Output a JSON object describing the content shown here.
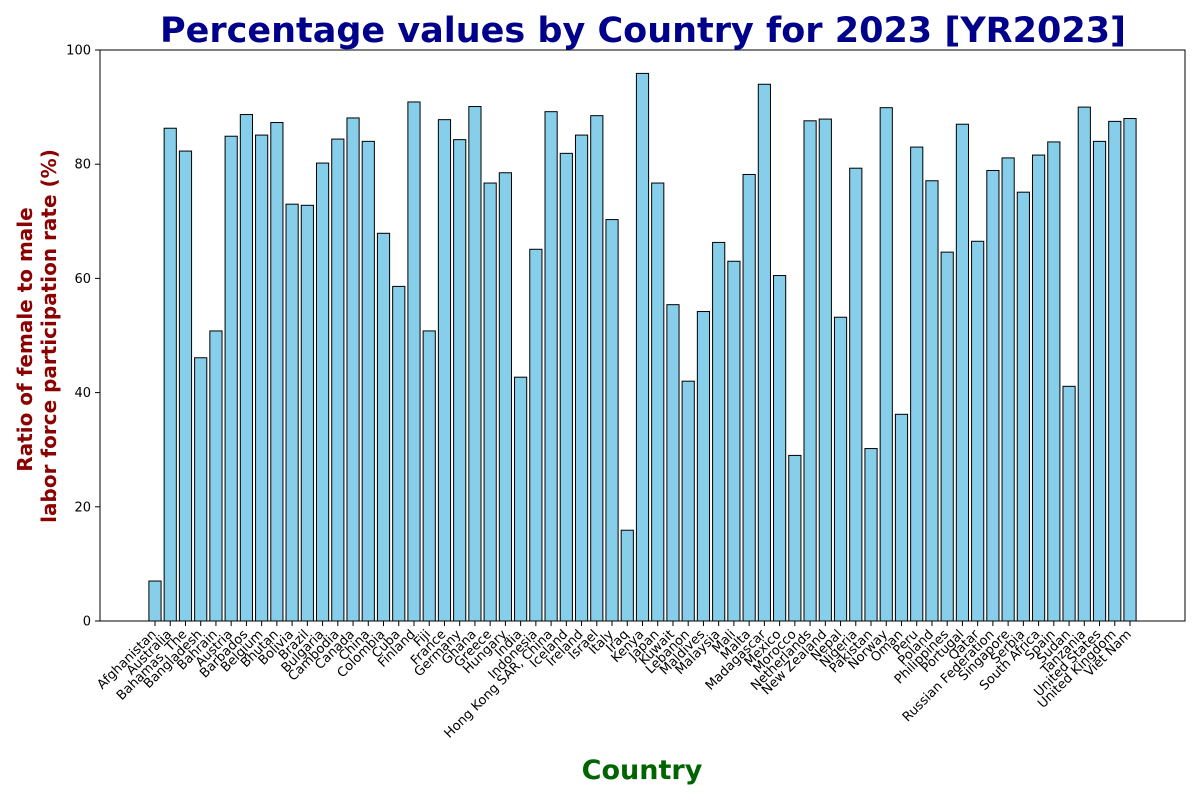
{
  "chart_data": {
    "type": "bar",
    "title": "Percentage values by Country for 2023 [YR2023]",
    "xlabel": "Country",
    "ylabel_lines": [
      "Ratio of female to male",
      "labor force participation rate (%)"
    ],
    "ylim": [
      0,
      100
    ],
    "yticks": [
      0,
      20,
      40,
      60,
      80,
      100
    ],
    "grid": false,
    "categories": [
      "Afghanistan",
      "Australia",
      "Bahamas, The",
      "Bangladesh",
      "Bahrain",
      "Austria",
      "Barbados",
      "Belgium",
      "Bhutan",
      "Bolivia",
      "Brazil",
      "Bulgaria",
      "Cambodia",
      "Canada",
      "China",
      "Colombia",
      "Cuba",
      "Finland",
      "Fiji",
      "France",
      "Germany",
      "Ghana",
      "Greece",
      "Hungary",
      "India",
      "Indonesia",
      "Hong Kong SAR, China",
      "Iceland",
      "Ireland",
      "Israel",
      "Italy",
      "Iraq",
      "Kenya",
      "Japan",
      "Kuwait",
      "Lebanon",
      "Maldives",
      "Malaysia",
      "Mali",
      "Malta",
      "Madagascar",
      "Mexico",
      "Morocco",
      "Netherlands",
      "New Zealand",
      "Nepal",
      "Nigeria",
      "Pakistan",
      "Norway",
      "Oman",
      "Peru",
      "Poland",
      "Philippines",
      "Portugal",
      "Qatar",
      "Russian Federation",
      "Singapore",
      "Serbia",
      "South Africa",
      "Spain",
      "Sudan",
      "Tanzania",
      "United States",
      "United Kingdom",
      "Viet Nam"
    ],
    "values": [
      7.0,
      86.3,
      82.3,
      46.1,
      50.8,
      84.9,
      88.7,
      85.1,
      87.3,
      73.0,
      72.8,
      80.2,
      84.4,
      88.1,
      84.0,
      67.9,
      58.6,
      90.9,
      50.8,
      87.8,
      84.3,
      90.1,
      76.7,
      78.5,
      42.7,
      65.1,
      89.2,
      81.9,
      85.1,
      88.5,
      70.3,
      15.9,
      95.9,
      76.7,
      55.4,
      42.0,
      54.2,
      66.3,
      63.0,
      78.2,
      94.0,
      60.5,
      29.0,
      87.6,
      87.9,
      53.2,
      79.3,
      30.2,
      89.9,
      36.2,
      83.0,
      77.1,
      64.6,
      87.0,
      66.5,
      78.9,
      81.1,
      75.1,
      81.6,
      83.9,
      41.1,
      90.0,
      84.0,
      87.5,
      88.0
    ]
  },
  "colors": {
    "bar_fill": "#87ceeb",
    "bar_edge": "#000000",
    "title": "#00008b",
    "xlabel": "#006400",
    "ylabel": "#8b0000"
  }
}
